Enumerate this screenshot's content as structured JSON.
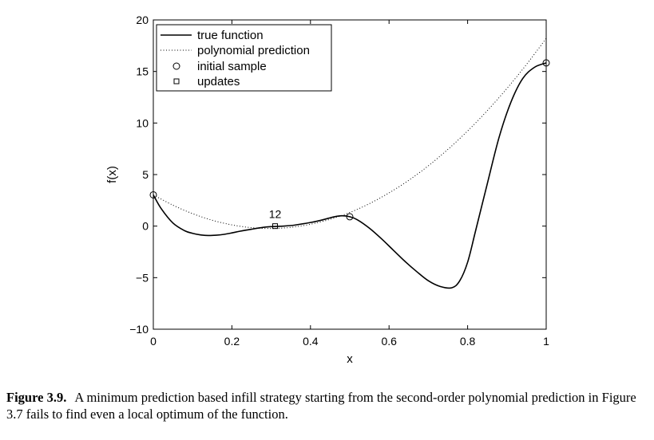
{
  "chart_data": {
    "type": "line",
    "xlabel": "x",
    "ylabel": "f(x)",
    "xlim": [
      0,
      1
    ],
    "ylim": [
      -10,
      20
    ],
    "xticks": [
      0,
      0.2,
      0.4,
      0.6,
      0.8,
      1
    ],
    "xtick_labels": [
      "0",
      "0.2",
      "0.4",
      "0.6",
      "0.8",
      "1"
    ],
    "yticks": [
      -10,
      -5,
      0,
      5,
      10,
      15,
      20
    ],
    "ytick_labels": [
      "−10",
      "−5",
      "0",
      "5",
      "10",
      "15",
      "20"
    ],
    "legend": {
      "placement": "top-left",
      "entries": [
        {
          "label": "true function",
          "style": "solid-line"
        },
        {
          "label": "polynomial prediction",
          "style": "dotted-line"
        },
        {
          "label": "initial sample",
          "style": "circle-marker"
        },
        {
          "label": "updates",
          "style": "square-marker"
        }
      ]
    },
    "series": [
      {
        "name": "true function",
        "style": "solid",
        "x": [
          0,
          0.02,
          0.05,
          0.08,
          0.1,
          0.12,
          0.14,
          0.16,
          0.18,
          0.2,
          0.22,
          0.25,
          0.28,
          0.3,
          0.33,
          0.36,
          0.4,
          0.43,
          0.46,
          0.48,
          0.5,
          0.52,
          0.55,
          0.58,
          0.61,
          0.64,
          0.67,
          0.7,
          0.73,
          0.76,
          0.78,
          0.8,
          0.82,
          0.85,
          0.88,
          0.91,
          0.94,
          0.97,
          1
        ],
        "y": [
          3.03,
          1.7,
          0.3,
          -0.45,
          -0.7,
          -0.85,
          -0.91,
          -0.88,
          -0.8,
          -0.66,
          -0.5,
          -0.3,
          -0.12,
          -0.05,
          0,
          0.1,
          0.35,
          0.6,
          0.9,
          1,
          0.91,
          0.6,
          -0.2,
          -1.2,
          -2.3,
          -3.4,
          -4.4,
          -5.3,
          -5.85,
          -5.98,
          -5.3,
          -3.5,
          -0.5,
          4.1,
          8.6,
          12,
          14.3,
          15.4,
          15.83
        ]
      },
      {
        "name": "polynomial prediction",
        "style": "dotted",
        "x": [
          0,
          0.05,
          0.1,
          0.15,
          0.2,
          0.25,
          0.3,
          0.35,
          0.4,
          0.45,
          0.5,
          0.55,
          0.6,
          0.65,
          0.7,
          0.75,
          0.8,
          0.85,
          0.9,
          0.95,
          1
        ],
        "y": [
          3.03,
          2.03,
          1.21,
          0.57,
          0.12,
          -0.15,
          -0.23,
          -0.12,
          0.18,
          0.66,
          1.32,
          2.18,
          3.22,
          4.44,
          5.85,
          7.45,
          9.23,
          11.2,
          13.35,
          15.69,
          18.21
        ]
      }
    ],
    "initial_samples": {
      "x": [
        0,
        0.5,
        1
      ],
      "y": [
        3.03,
        0.91,
        15.83
      ]
    },
    "updates": {
      "x": [
        0.31
      ],
      "y": [
        0
      ]
    },
    "annotations": [
      {
        "text": "12",
        "x": 0.31,
        "y": 0
      }
    ]
  },
  "caption": {
    "label": "Figure 3.9.",
    "text": "A minimum prediction based infill strategy starting from the second-order polynomial prediction in Figure 3.7 fails to find even a local optimum of the function."
  }
}
